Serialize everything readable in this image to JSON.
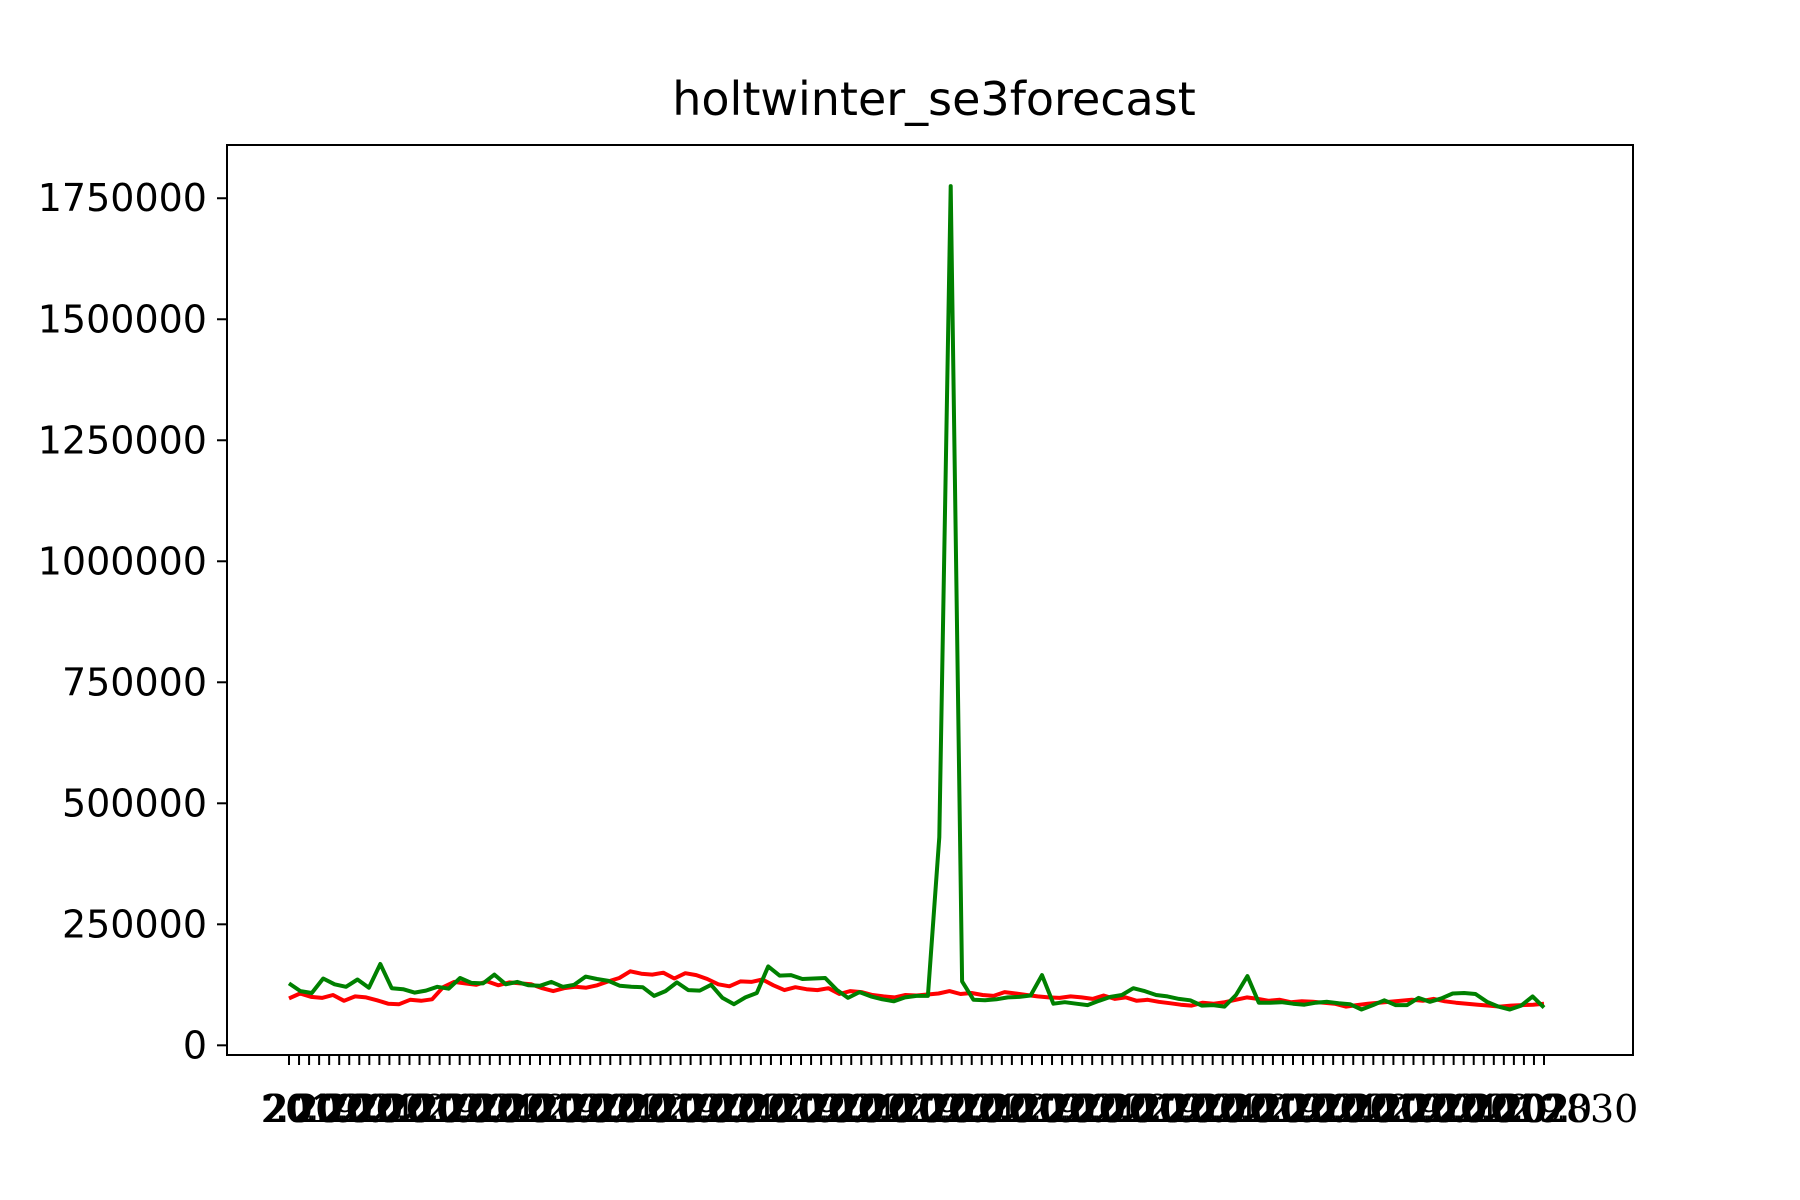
{
  "chart_data": {
    "type": "line",
    "title": "holtwinter_se3forecast",
    "xlabel": "",
    "ylabel": "",
    "ylim": [
      -20000,
      1860000
    ],
    "y_ticks": [
      0,
      250000,
      500000,
      750000,
      1000000,
      1250000,
      1500000,
      1750000
    ],
    "y_tick_labels": [
      "0",
      "250000",
      "500000",
      "750000",
      "1000000",
      "1250000",
      "1500000",
      "1750000"
    ],
    "x_tick_labels_visible": "overlapping unreadable date labels",
    "grid": false,
    "legend": "none",
    "series": [
      {
        "color": "#ff0000",
        "values": [
          97000,
          107000,
          100000,
          98000,
          104000,
          92000,
          101000,
          99000,
          93000,
          86000,
          85000,
          94000,
          92000,
          95000,
          120000,
          131000,
          128000,
          125000,
          132000,
          124000,
          130000,
          128000,
          126000,
          118000,
          112000,
          118000,
          121000,
          119000,
          124000,
          132000,
          139000,
          153000,
          148000,
          146000,
          150000,
          138000,
          149000,
          145000,
          137000,
          126000,
          122000,
          132000,
          131000,
          136000,
          124000,
          114000,
          120000,
          116000,
          114000,
          118000,
          106000,
          112000,
          110000,
          104000,
          101000,
          99000,
          104000,
          103000,
          105000,
          107000,
          112000,
          106000,
          108000,
          104000,
          102000,
          110000,
          107000,
          104000,
          101000,
          99000,
          98000,
          101000,
          99000,
          96000,
          103000,
          96000,
          99000,
          92000,
          94000,
          90000,
          87000,
          84000,
          82000,
          88000,
          86000,
          89000,
          94000,
          99000,
          96000,
          92000,
          94000,
          89000,
          91000,
          90000,
          88000,
          86000,
          80000,
          83000,
          86000,
          88000,
          90000,
          92000,
          94000,
          92000,
          96000,
          91000,
          88000,
          86000,
          84000,
          82000,
          80000,
          82000,
          83000,
          84000,
          86000
        ]
      },
      {
        "color": "#008000",
        "values": [
          128000,
          112000,
          108000,
          138000,
          126000,
          121000,
          136000,
          119000,
          168000,
          118000,
          116000,
          109000,
          113000,
          121000,
          117000,
          139000,
          129000,
          128000,
          146000,
          126000,
          131000,
          124000,
          123000,
          131000,
          121000,
          125000,
          142000,
          137000,
          133000,
          123000,
          121000,
          120000,
          102000,
          112000,
          130000,
          114000,
          113000,
          125000,
          98000,
          85000,
          99000,
          108000,
          163000,
          144000,
          145000,
          137000,
          138000,
          139000,
          115000,
          98000,
          110000,
          101000,
          95000,
          91000,
          99000,
          102000,
          102000,
          430000,
          1775000,
          132000,
          94000,
          93000,
          95000,
          99000,
          100000,
          103000,
          145000,
          86000,
          89000,
          86000,
          83000,
          92000,
          100000,
          104000,
          118000,
          112000,
          104000,
          101000,
          96000,
          93000,
          82000,
          83000,
          80000,
          104000,
          143000,
          88000,
          88000,
          89000,
          86000,
          84000,
          88000,
          90000,
          87000,
          85000,
          74000,
          83000,
          93000,
          83000,
          83000,
          98000,
          90000,
          97000,
          107000,
          108000,
          106000,
          90000,
          80000,
          74000,
          82000,
          101000,
          78000
        ]
      }
    ]
  }
}
